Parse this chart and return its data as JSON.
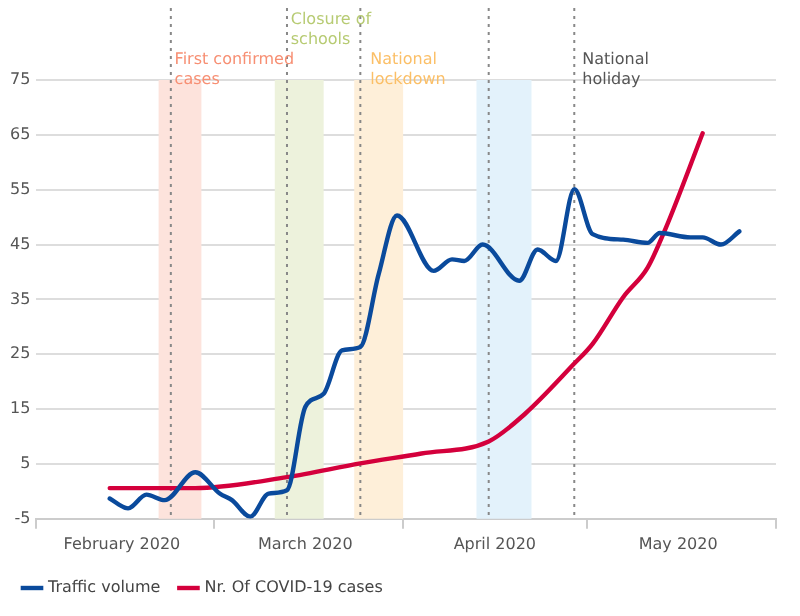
{
  "chart_data": {
    "type": "line",
    "x": [
      "2020-02-13",
      "2020-02-16",
      "2020-02-19",
      "2020-02-22",
      "2020-02-27",
      "2020-03-02",
      "2020-03-04",
      "2020-03-07",
      "2020-03-10",
      "2020-03-13",
      "2020-03-16",
      "2020-03-19",
      "2020-03-22",
      "2020-03-25",
      "2020-03-28",
      "2020-03-31",
      "2020-04-06",
      "2020-04-09",
      "2020-04-11",
      "2020-04-14",
      "2020-04-20",
      "2020-04-23",
      "2020-04-26",
      "2020-04-29",
      "2020-05-02",
      "2020-05-07",
      "2020-05-11",
      "2020-05-13",
      "2020-05-18",
      "2020-05-20",
      "2020-05-23",
      "2020-05-26"
    ],
    "series": [
      {
        "name": "Traffic volume",
        "color": "#0a4a9c",
        "values": [
          -1.3,
          -3.1,
          -0.6,
          -1.6,
          3.5,
          -0.4,
          -1.6,
          -4.6,
          -0.4,
          0.2,
          15.4,
          17.8,
          25.7,
          26.3,
          39.6,
          50.3,
          40.2,
          42.3,
          42,
          45,
          38.4,
          44.1,
          42,
          55.1,
          46.9,
          45.9,
          45.3,
          47.1,
          46.3,
          46.3,
          45,
          47.4
        ]
      },
      {
        "name": "Nr. Of COVID-19 cases",
        "color": "#d4003c",
        "x": [
          "2020-02-13",
          "2020-02-27",
          "2020-03-13",
          "2020-03-25",
          "2020-04-04",
          "2020-04-15",
          "2020-04-21",
          "2020-04-29",
          "2020-05-02",
          "2020-05-07",
          "2020-05-11",
          "2020-05-14",
          "2020-05-20"
        ],
        "values": [
          0.6,
          0.6,
          2.6,
          5.1,
          6.9,
          9.1,
          14.2,
          23.3,
          26.9,
          35.4,
          40.8,
          48.1,
          65.3
        ]
      }
    ],
    "xlim": [
      "2020-02-01",
      "2020-06-01"
    ],
    "xticks": [
      {
        "value": "2020-02-01",
        "label": null
      },
      {
        "value": "2020-02-15",
        "label": "February 2020"
      },
      {
        "value": "2020-03-01",
        "label": null
      },
      {
        "value": "2020-03-16",
        "label": "March 2020"
      },
      {
        "value": "2020-04-01",
        "label": null
      },
      {
        "value": "2020-04-16",
        "label": "April 2020"
      },
      {
        "value": "2020-05-01",
        "label": null
      },
      {
        "value": "2020-05-16",
        "label": "May 2020"
      },
      {
        "value": "2020-06-01",
        "label": null
      }
    ],
    "ylim": [
      -5,
      75
    ],
    "yticks": [
      -5,
      5,
      15,
      25,
      35,
      45,
      55,
      65,
      75
    ],
    "grid": "y",
    "legend": "bottom",
    "marker": "none",
    "line_style": "solid",
    "ref_lines": [
      {
        "axis": "x",
        "value": "2020-02-23",
        "color": "#888888",
        "line_style": "dotted"
      },
      {
        "axis": "x",
        "value": "2020-03-13",
        "color": "#888888",
        "line_style": "dotted"
      },
      {
        "axis": "x",
        "value": "2020-03-25",
        "color": "#888888",
        "line_style": "dotted"
      },
      {
        "axis": "x",
        "value": "2020-04-15",
        "color": "#888888",
        "line_style": "dotted"
      },
      {
        "axis": "x",
        "value": "2020-04-29",
        "color": "#888888",
        "line_style": "dotted",
        "label": "National holiday"
      }
    ],
    "bands": [
      {
        "axis": "x",
        "from": "2020-02-21",
        "to": "2020-02-28",
        "color": "#fde3dc",
        "label": "First confirmed cases"
      },
      {
        "axis": "x",
        "from": "2020-03-11",
        "to": "2020-03-19",
        "color": "#edf2dc",
        "label": "Closure of schools"
      },
      {
        "axis": "x",
        "from": "2020-03-24",
        "to": "2020-04-01",
        "color": "#feefd9",
        "label": "National lockdown"
      },
      {
        "axis": "x",
        "from": "2020-04-13",
        "to": "2020-04-22",
        "color": "#e3f2fb"
      }
    ]
  }
}
